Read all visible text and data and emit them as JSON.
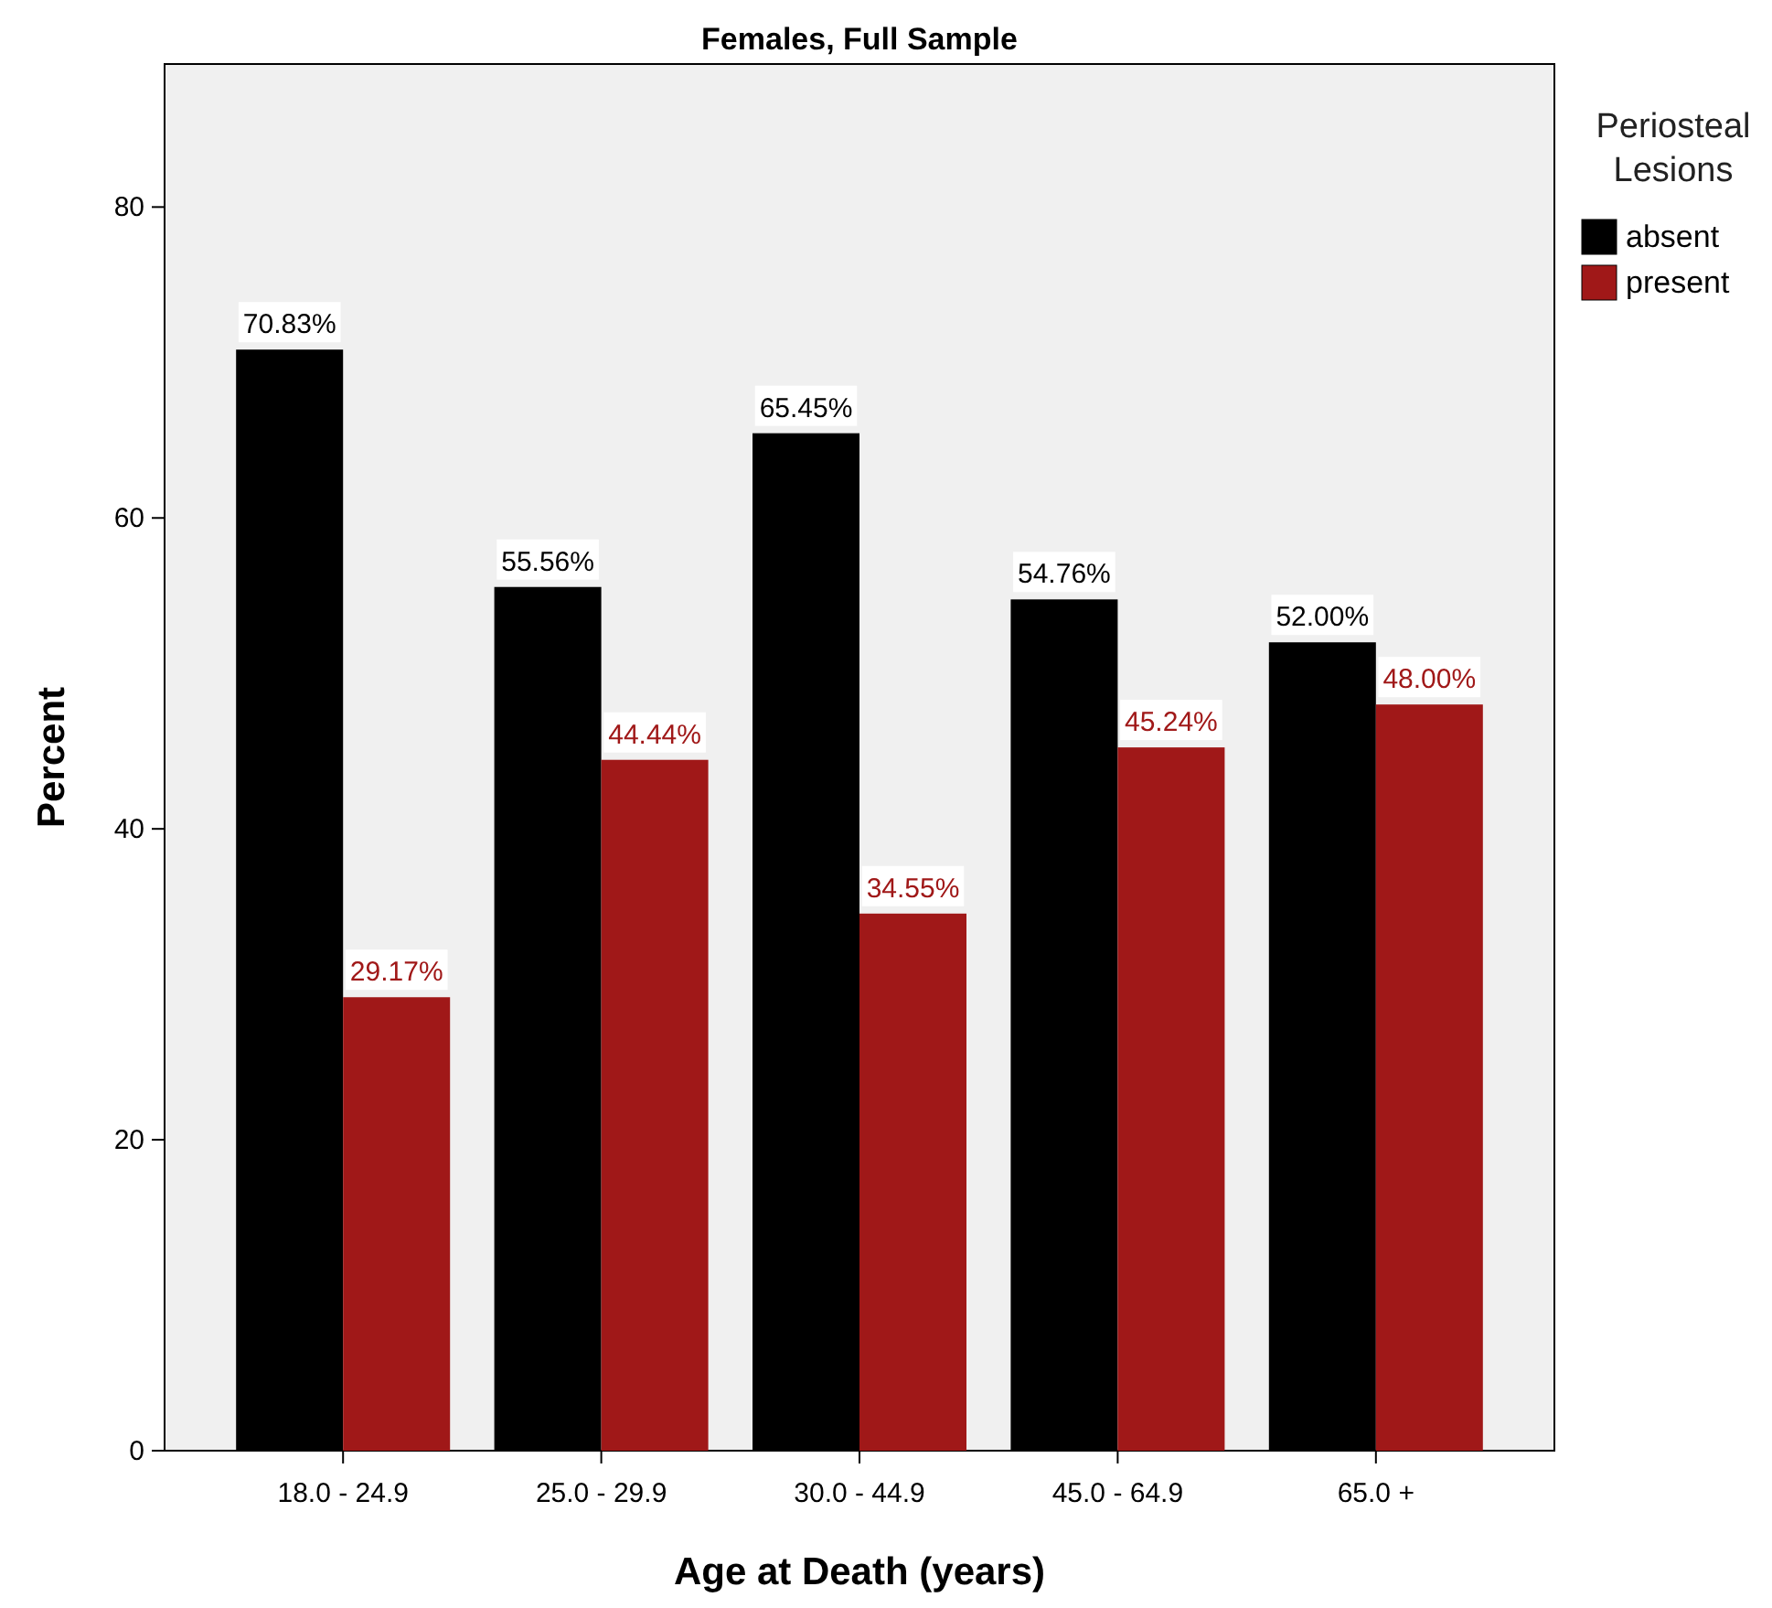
{
  "chart_data": {
    "type": "bar",
    "title": "Females, Full Sample",
    "xlabel": "Age at Death (years)",
    "ylabel": "Percent",
    "legend_title": "Periosteal Lesions",
    "categories": [
      "18.0 - 24.9",
      "25.0 - 29.9",
      "30.0 - 44.9",
      "45.0 - 64.9",
      "65.0 +"
    ],
    "series": [
      {
        "name": "absent",
        "color": "#000000",
        "values": [
          70.83,
          55.56,
          65.45,
          54.76,
          52.0
        ],
        "value_labels": [
          "70.83%",
          "55.56%",
          "65.45%",
          "54.76%",
          "52.00%"
        ]
      },
      {
        "name": "present",
        "color": "#a01818",
        "values": [
          29.17,
          44.44,
          34.55,
          45.24,
          48.0
        ],
        "value_labels": [
          "29.17%",
          "44.44%",
          "34.55%",
          "45.24%",
          "48.00%"
        ]
      }
    ],
    "ylim": [
      0,
      89.2
    ],
    "yticks": [
      0,
      20,
      40,
      60,
      80
    ],
    "grid": false,
    "legend": "right"
  }
}
